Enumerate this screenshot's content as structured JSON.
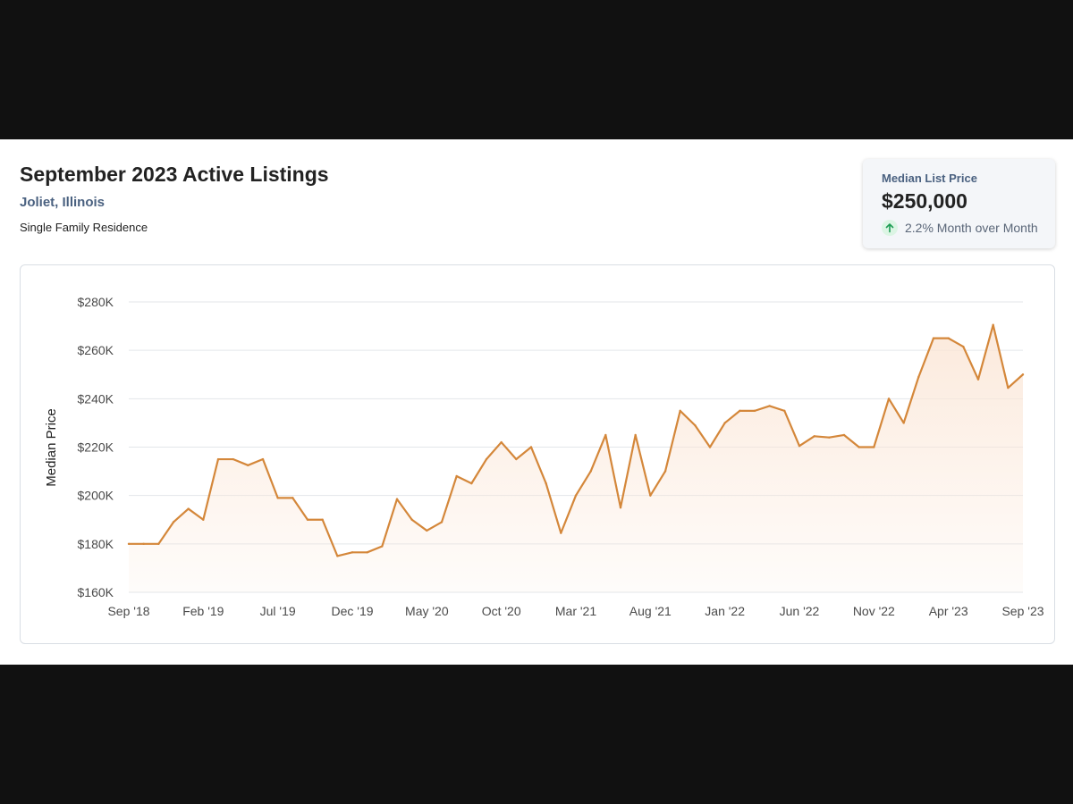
{
  "header": {
    "title": "September 2023 Active Listings",
    "location": "Joliet, Illinois",
    "property_type": "Single Family Residence"
  },
  "stat_card": {
    "label": "Median List Price",
    "value": "$250,000",
    "change_icon": "arrow-up-icon",
    "change_text": "2.2% Month over Month",
    "change_color": "#1f9d55"
  },
  "colors": {
    "line": "#d4873a",
    "area": "#fbe6d6",
    "grid": "#e3e6ea"
  },
  "chart_data": {
    "type": "area",
    "title": "",
    "xlabel": "",
    "ylabel": "Median Price",
    "ylim": [
      160000,
      280000
    ],
    "y_ticks": [
      160000,
      180000,
      200000,
      220000,
      240000,
      260000,
      280000
    ],
    "y_tick_labels": [
      "$160K",
      "$180K",
      "$200K",
      "$220K",
      "$240K",
      "$260K",
      "$280K"
    ],
    "x_tick_labels": [
      "Sep '18",
      "Feb '19",
      "Jul '19",
      "Dec '19",
      "May '20",
      "Oct '20",
      "Mar '21",
      "Aug '21",
      "Jan '22",
      "Jun '22",
      "Nov '22",
      "Apr '23",
      "Sep '23"
    ],
    "grid": true,
    "legend": "none",
    "x": [
      "2018-09",
      "2018-10",
      "2018-11",
      "2018-12",
      "2019-01",
      "2019-02",
      "2019-03",
      "2019-04",
      "2019-05",
      "2019-06",
      "2019-07",
      "2019-08",
      "2019-09",
      "2019-10",
      "2019-11",
      "2019-12",
      "2020-01",
      "2020-02",
      "2020-03",
      "2020-04",
      "2020-05",
      "2020-06",
      "2020-07",
      "2020-08",
      "2020-09",
      "2020-10",
      "2020-11",
      "2020-12",
      "2021-01",
      "2021-02",
      "2021-03",
      "2021-04",
      "2021-05",
      "2021-06",
      "2021-07",
      "2021-08",
      "2021-09",
      "2021-10",
      "2021-11",
      "2021-12",
      "2022-01",
      "2022-02",
      "2022-03",
      "2022-04",
      "2022-05",
      "2022-06",
      "2022-07",
      "2022-08",
      "2022-09",
      "2022-10",
      "2022-11",
      "2022-12",
      "2023-01",
      "2023-02",
      "2023-03",
      "2023-04",
      "2023-05",
      "2023-06",
      "2023-07",
      "2023-08",
      "2023-09"
    ],
    "series": [
      {
        "name": "",
        "values": [
          180000,
          180000,
          180000,
          189000,
          194500,
          190000,
          215000,
          215000,
          212500,
          215000,
          199000,
          199000,
          190000,
          190000,
          175000,
          176500,
          176500,
          179000,
          198500,
          190000,
          185500,
          189000,
          208000,
          205000,
          215000,
          222000,
          215000,
          220000,
          205000,
          184500,
          200000,
          210000,
          225000,
          195000,
          225000,
          200000,
          210000,
          235000,
          229000,
          220000,
          230000,
          235000,
          235000,
          237000,
          235000,
          220500,
          224500,
          224000,
          225000,
          220000,
          220000,
          240000,
          230000,
          249000,
          265000,
          265000,
          261500,
          248000,
          270500,
          244500,
          250000
        ]
      }
    ]
  }
}
